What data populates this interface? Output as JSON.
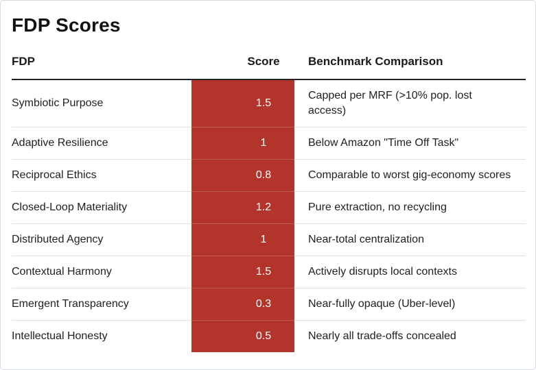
{
  "title": "FDP Scores",
  "colors": {
    "score_cell_bg": "#b2342a",
    "score_cell_text": "#ffffff",
    "header_rule": "#212121",
    "row_divider": "#e0e0e0"
  },
  "table": {
    "headers": {
      "fdp": "FDP",
      "score": "Score",
      "benchmark": "Benchmark Comparison"
    },
    "rows": [
      {
        "fdp": "Symbiotic Purpose",
        "score": "1.5",
        "benchmark": "Capped per MRF (>10% pop. lost access)"
      },
      {
        "fdp": "Adaptive Resilience",
        "score": "1",
        "benchmark": "Below Amazon \"Time Off Task\""
      },
      {
        "fdp": "Reciprocal Ethics",
        "score": "0.8",
        "benchmark": "Comparable to worst gig-economy scores"
      },
      {
        "fdp": "Closed-Loop Materiality",
        "score": "1.2",
        "benchmark": "Pure extraction, no recycling"
      },
      {
        "fdp": "Distributed Agency",
        "score": "1",
        "benchmark": "Near-total centralization"
      },
      {
        "fdp": "Contextual Harmony",
        "score": "1.5",
        "benchmark": "Actively disrupts local contexts"
      },
      {
        "fdp": "Emergent Transparency",
        "score": "0.3",
        "benchmark": "Near-fully opaque (Uber-level)"
      },
      {
        "fdp": "Intellectual Honesty",
        "score": "0.5",
        "benchmark": "Nearly all trade-offs concealed"
      }
    ]
  }
}
